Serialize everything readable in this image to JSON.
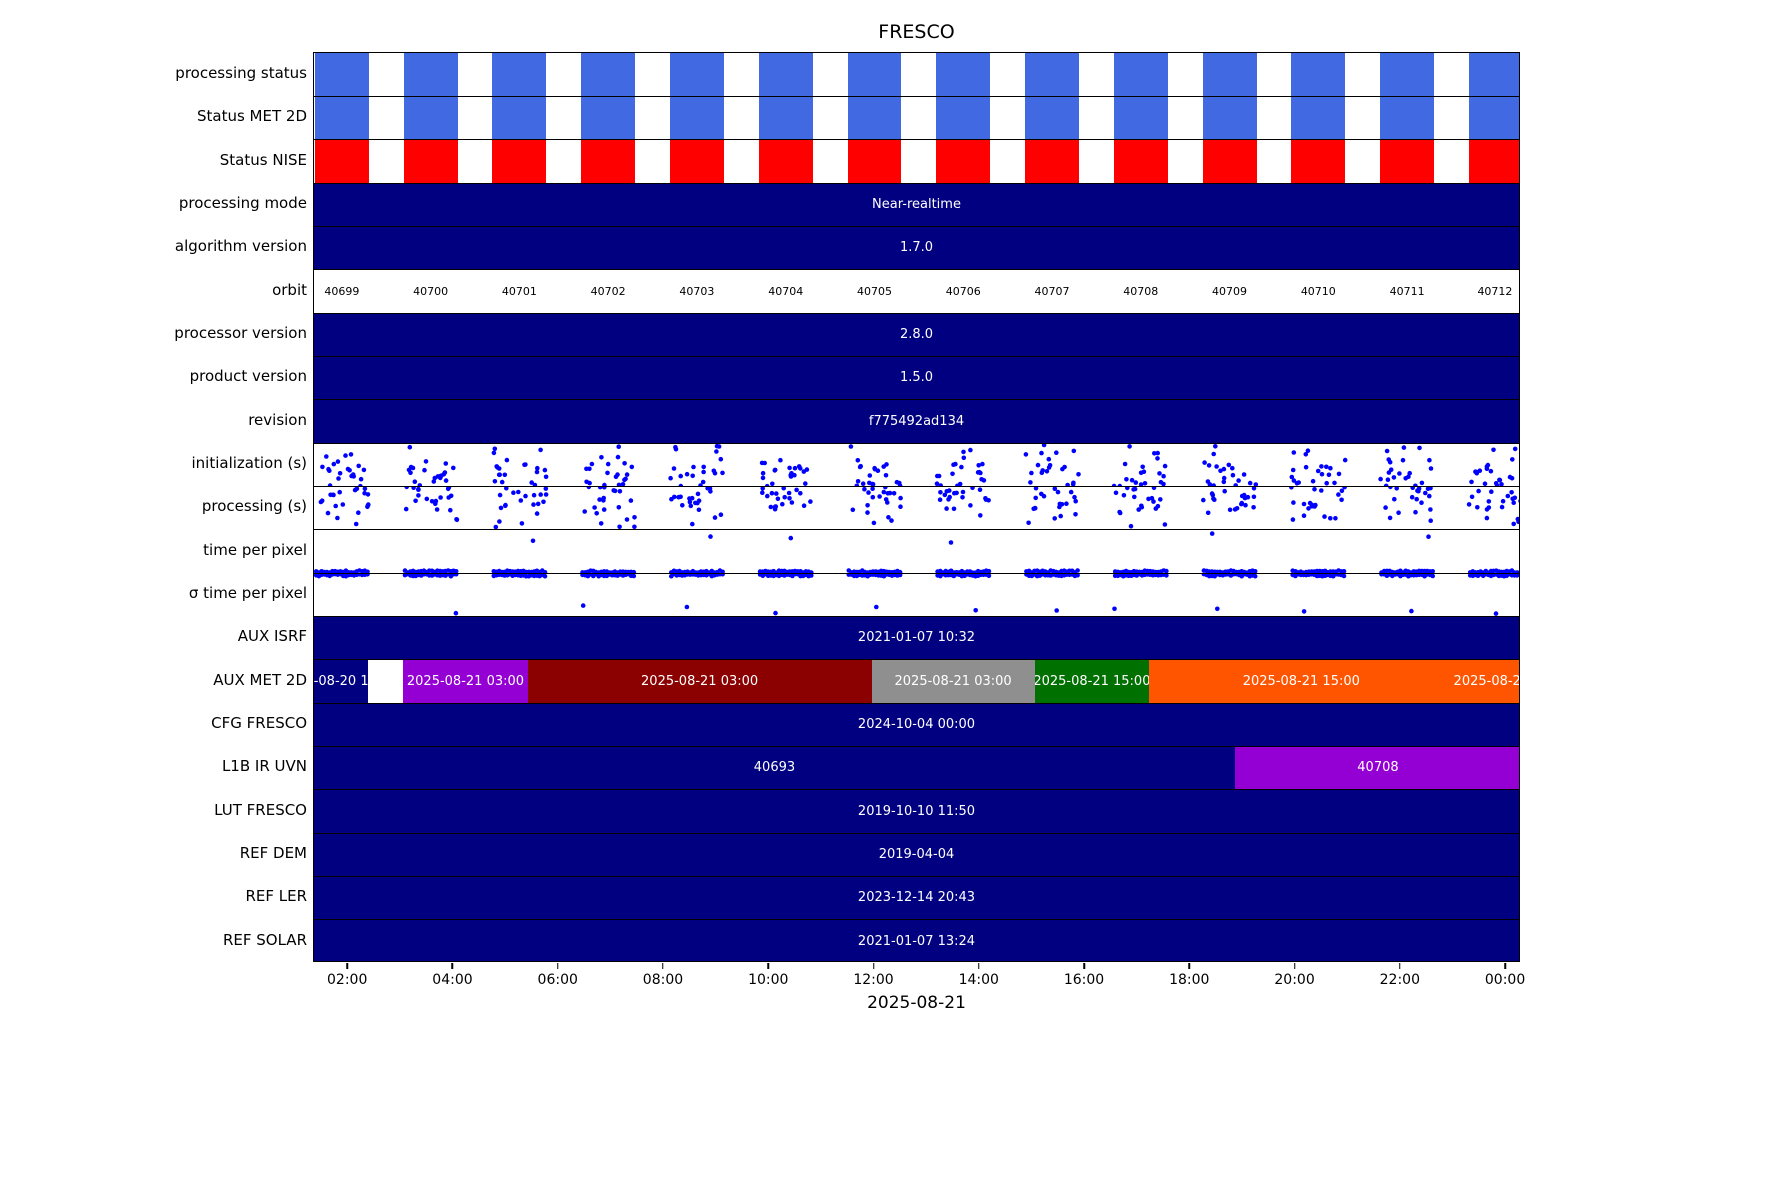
{
  "title": "FRESCO",
  "chart_data": {
    "type": "timeline",
    "title": "FRESCO",
    "x_axis": {
      "label": "2025-08-21",
      "tick_labels": [
        "02:00",
        "04:00",
        "06:00",
        "08:00",
        "10:00",
        "12:00",
        "14:00",
        "16:00",
        "18:00",
        "20:00",
        "22:00",
        "00:00"
      ],
      "start_min": 81,
      "end_min": 1457,
      "tick_start_min": 120,
      "tick_step_min": 120
    },
    "granules": {
      "start_min": 82,
      "period_min": 101.2,
      "duration_min": 61.5,
      "count": 14
    },
    "orbits": [
      "40699",
      "40700",
      "40701",
      "40702",
      "40703",
      "40704",
      "40705",
      "40706",
      "40707",
      "40708",
      "40709",
      "40710",
      "40711",
      "40712"
    ],
    "colors": {
      "status_blue": "#4169E1",
      "status_red": "#FF0000",
      "navy": "#000080",
      "white": "#FFFFFF",
      "purple": "#9400D3",
      "darkred": "#8B0000",
      "gray": "#8F8F8F",
      "green": "#007000",
      "orange": "#FF5500",
      "dot": "#0000FF"
    },
    "scatter_patterns": {
      "cluster_low": {
        "kind": "cluster",
        "n": 20,
        "y_main": [
          0.45,
          1.0
        ],
        "y_out": [
          0.03,
          0.45
        ],
        "out_prob": 0.2
      },
      "cluster_high": {
        "kind": "cluster",
        "n": 20,
        "y_main": [
          0.02,
          0.55
        ],
        "y_out": [
          0.55,
          0.97
        ],
        "out_prob": 0.2
      },
      "line_bottom": {
        "kind": "line",
        "n": 20,
        "line_y": 0.96,
        "jitter": 0.05,
        "out_prob": 0.35,
        "y_out": [
          0.08,
          0.3
        ]
      },
      "line_top_sparse": {
        "kind": "line",
        "n": 20,
        "line_y": 0.05,
        "jitter": 0.05,
        "sparse_prob": 0.6,
        "y_sparse": [
          0.72,
          0.95
        ]
      }
    },
    "rows": [
      {
        "name": "processing status",
        "type": "blocks",
        "color_key": "status_blue"
      },
      {
        "name": "Status MET 2D",
        "type": "blocks",
        "color_key": "status_blue"
      },
      {
        "name": "Status NISE",
        "type": "blocks",
        "color_key": "status_red"
      },
      {
        "name": "processing mode",
        "type": "solid",
        "label": "Near-realtime"
      },
      {
        "name": "algorithm version",
        "type": "solid",
        "label": "1.7.0"
      },
      {
        "name": "orbit",
        "type": "orbit"
      },
      {
        "name": "processor version",
        "type": "solid",
        "label": "2.8.0"
      },
      {
        "name": "product version",
        "type": "solid",
        "label": "1.5.0"
      },
      {
        "name": "revision",
        "type": "solid",
        "label": "f775492ad134"
      },
      {
        "name": "initialization (s)",
        "type": "scatter",
        "pattern": "cluster_low"
      },
      {
        "name": "processing (s)",
        "type": "scatter",
        "pattern": "cluster_high"
      },
      {
        "name": "time per pixel",
        "type": "scatter",
        "pattern": "line_bottom"
      },
      {
        "name": "σ time per pixel",
        "type": "scatter",
        "pattern": "line_top_sparse"
      },
      {
        "name": "AUX ISRF",
        "type": "solid",
        "label": "2021-01-07 10:32"
      },
      {
        "name": "AUX MET 2D",
        "type": "segments",
        "segments": [
          {
            "start": 0.0,
            "end": 0.045,
            "color_key": "navy",
            "label": "-08-20 1"
          },
          {
            "start": 0.045,
            "end": 0.074,
            "color_key": "white",
            "label": ""
          },
          {
            "start": 0.074,
            "end": 0.177,
            "color_key": "purple",
            "label": "2025-08-21 03:00"
          },
          {
            "start": 0.177,
            "end": 0.462,
            "color_key": "darkred",
            "label": "2025-08-21 03:00"
          },
          {
            "start": 0.462,
            "end": 0.597,
            "color_key": "gray",
            "label": "2025-08-21 03:00"
          },
          {
            "start": 0.597,
            "end": 0.692,
            "color_key": "green",
            "label": "2025-08-21 15:00"
          },
          {
            "start": 0.692,
            "end": 0.944,
            "color_key": "orange",
            "label": "2025-08-21 15:00"
          },
          {
            "start": 0.944,
            "end": 1.0,
            "color_key": "orange",
            "label": "2025-08-2"
          }
        ]
      },
      {
        "name": "CFG FRESCO",
        "type": "solid",
        "label": "2024-10-04 00:00"
      },
      {
        "name": "L1B IR UVN",
        "type": "segments",
        "segments": [
          {
            "start": 0.0,
            "end": 0.763,
            "color_key": "navy",
            "label": "40693"
          },
          {
            "start": 0.763,
            "end": 1.0,
            "color_key": "purple",
            "label": "40708"
          }
        ]
      },
      {
        "name": "LUT FRESCO",
        "type": "solid",
        "label": "2019-10-10 11:50"
      },
      {
        "name": "REF DEM",
        "type": "solid",
        "label": "2019-04-04"
      },
      {
        "name": "REF LER",
        "type": "solid",
        "label": "2023-12-14 20:43"
      },
      {
        "name": "REF SOLAR",
        "type": "solid",
        "label": "2021-01-07 13:24"
      }
    ]
  }
}
